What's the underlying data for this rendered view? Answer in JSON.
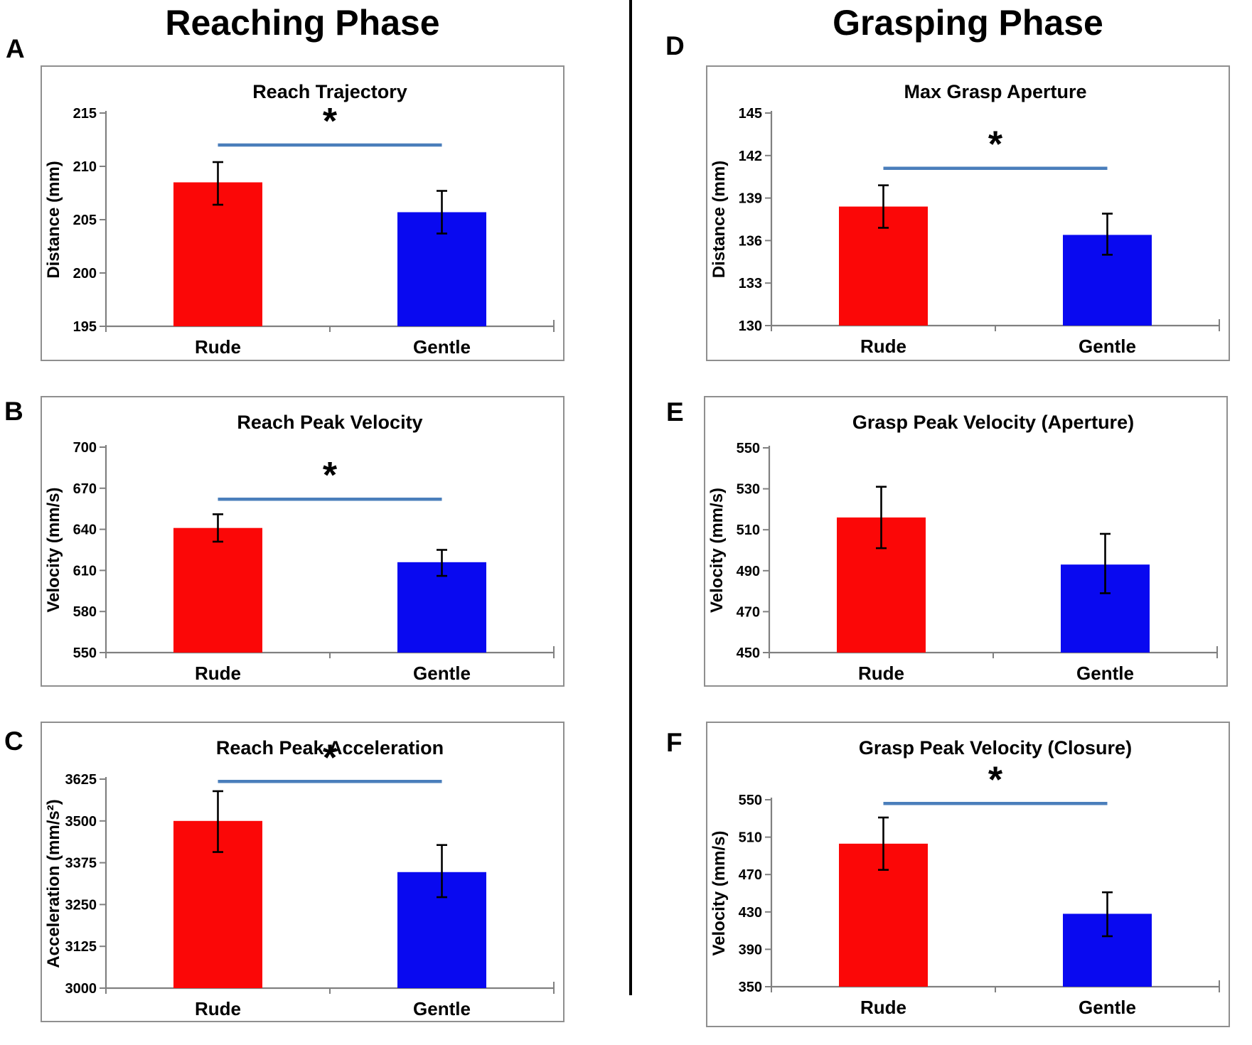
{
  "figure": {
    "left_header": "Reaching Phase",
    "right_header": "Grasping Phase",
    "colors": {
      "rude_bar": "#FB0707",
      "gentle_bar": "#0909F0",
      "significance_line": "#4A7EBB",
      "axis": "#808080",
      "error_bar": "#000000",
      "divider": "#000000"
    }
  },
  "chart_data": [
    {
      "panel_label": "A",
      "type": "bar",
      "title": "Reach Trajectory",
      "ylabel": "Distance (mm)",
      "categories": [
        "Rude",
        "Gentle"
      ],
      "values": [
        208.5,
        205.7
      ],
      "error_low": [
        206.4,
        203.7
      ],
      "error_high": [
        210.4,
        207.7
      ],
      "ylim": [
        195,
        215
      ],
      "yticks": [
        195,
        200,
        205,
        210,
        215
      ],
      "significance": {
        "symbol": "*",
        "line_y": 212
      }
    },
    {
      "panel_label": "B",
      "type": "bar",
      "title": "Reach Peak Velocity",
      "ylabel": "Velocity (mm/s)",
      "categories": [
        "Rude",
        "Gentle"
      ],
      "values": [
        641,
        616
      ],
      "error_low": [
        631,
        606
      ],
      "error_high": [
        651,
        625
      ],
      "ylim": [
        550,
        700
      ],
      "yticks": [
        550,
        580,
        610,
        640,
        670,
        700
      ],
      "significance": {
        "symbol": "*",
        "line_y": 662
      }
    },
    {
      "panel_label": "C",
      "type": "bar",
      "title": "Reach Peak Acceleration",
      "ylabel": "Acceleration (mm/s²)",
      "categories": [
        "Rude",
        "Gentle"
      ],
      "values": [
        3500,
        3347
      ],
      "error_low": [
        3407,
        3272
      ],
      "error_high": [
        3589,
        3428
      ],
      "ylim": [
        3000,
        3625
      ],
      "yticks": [
        3000,
        3125,
        3250,
        3375,
        3500,
        3625
      ],
      "significance": {
        "symbol": "*",
        "line_y": 3618
      }
    },
    {
      "panel_label": "D",
      "type": "bar",
      "title": "Max Grasp Aperture",
      "ylabel": "Distance (mm)",
      "categories": [
        "Rude",
        "Gentle"
      ],
      "values": [
        138.4,
        136.4
      ],
      "error_low": [
        136.9,
        135.0
      ],
      "error_high": [
        139.9,
        137.9
      ],
      "ylim": [
        130,
        145
      ],
      "yticks": [
        130,
        133,
        136,
        139,
        142,
        145
      ],
      "significance": {
        "symbol": "*",
        "line_y": 141.1
      }
    },
    {
      "panel_label": "E",
      "type": "bar",
      "title": "Grasp Peak Velocity (Aperture)",
      "ylabel": "Velocity (mm/s)",
      "categories": [
        "Rude",
        "Gentle"
      ],
      "values": [
        516,
        493
      ],
      "error_low": [
        501,
        479
      ],
      "error_high": [
        531,
        508
      ],
      "ylim": [
        450,
        550
      ],
      "yticks": [
        450,
        470,
        490,
        510,
        530,
        550
      ],
      "significance": null
    },
    {
      "panel_label": "F",
      "type": "bar",
      "title": "Grasp Peak Velocity (Closure)",
      "ylabel": "Velocity (mm/s)",
      "categories": [
        "Rude",
        "Gentle"
      ],
      "values": [
        503,
        428
      ],
      "error_low": [
        475,
        404
      ],
      "error_high": [
        531,
        451
      ],
      "ylim": [
        350,
        550
      ],
      "yticks": [
        350,
        390,
        430,
        470,
        510,
        550
      ],
      "significance": {
        "symbol": "*",
        "line_y": 546
      }
    }
  ]
}
